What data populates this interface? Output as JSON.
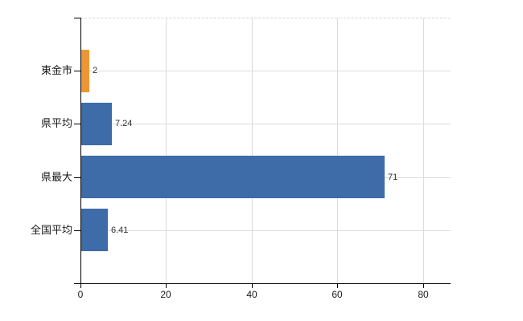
{
  "chart_data": {
    "type": "bar",
    "orientation": "horizontal",
    "title": "",
    "categories": [
      "東金市",
      "県平均",
      "県最大",
      "全国平均"
    ],
    "values": [
      2,
      7.24,
      71,
      6.41
    ],
    "value_labels": [
      "2",
      "7.24",
      "71",
      "6.41"
    ],
    "bar_colors": [
      "#ee9633",
      "#3d6ca8",
      "#3d6ca8",
      "#3d6ca8"
    ],
    "x_tick_labels": [
      "0",
      "20",
      "40",
      "60",
      "80"
    ],
    "x_tick_values": [
      0,
      20,
      40,
      60,
      80
    ],
    "xlim": [
      0,
      86.4
    ],
    "grid": true,
    "legend_visible": false,
    "colors": {
      "bar_blue": "#3d6ca8",
      "bar_orange": "#ee9633",
      "axis": "#000000",
      "gridline": "#dcdcdc",
      "text": "#1a1a1a",
      "value_text": "#303030",
      "background": "#ffffff"
    }
  }
}
